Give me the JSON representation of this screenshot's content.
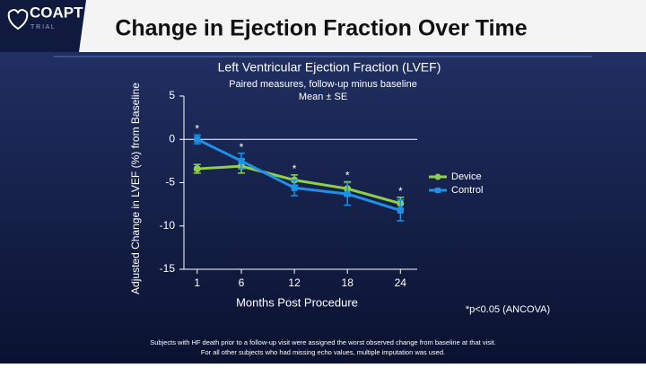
{
  "logo": "COAPT",
  "logo_sub": "T R I A L",
  "title": "Change in Ejection Fraction Over Time",
  "chart_data": {
    "type": "line",
    "title": "Left Ventricular Ejection Fraction (LVEF)",
    "subtitle": "Paired measures, follow-up minus baseline",
    "subtitle2": "Mean ± SE",
    "ylabel": "Adjusted Change in LVEF (%) from Baseline",
    "xlabel": "Months Post Procedure",
    "x": [
      1,
      6,
      12,
      18,
      24
    ],
    "xlim": [
      -0.5,
      25.9
    ],
    "xticks": [
      1,
      6,
      12,
      18,
      24
    ],
    "ylim": [
      -15,
      5
    ],
    "yticks": [
      5,
      0,
      -5,
      -10,
      -15
    ],
    "legend": "right",
    "series": [
      {
        "name": "Device",
        "color": "#8fcf4a",
        "marker": "circle",
        "values": [
          -3.4,
          -3.1,
          -4.7,
          -5.7,
          -7.4
        ],
        "errors": [
          0.5,
          0.8,
          0.6,
          0.8,
          0.7
        ]
      },
      {
        "name": "Control",
        "color": "#1e90e6",
        "marker": "square",
        "values": [
          0,
          -2.5,
          -5.6,
          -6.3,
          -8.2
        ],
        "errors": [
          0.5,
          0.9,
          0.9,
          1.3,
          1.2
        ]
      }
    ],
    "annotations": [
      "*",
      "*",
      "*",
      "*",
      "*"
    ],
    "note": "*p<0.05 (ANCOVA)"
  },
  "footnote": [
    "Subjects with HF death prior to a follow-up visit were assigned the worst observed change from baseline at that visit.",
    "For all other subjects who had missing echo values, multiple imputation was used."
  ]
}
